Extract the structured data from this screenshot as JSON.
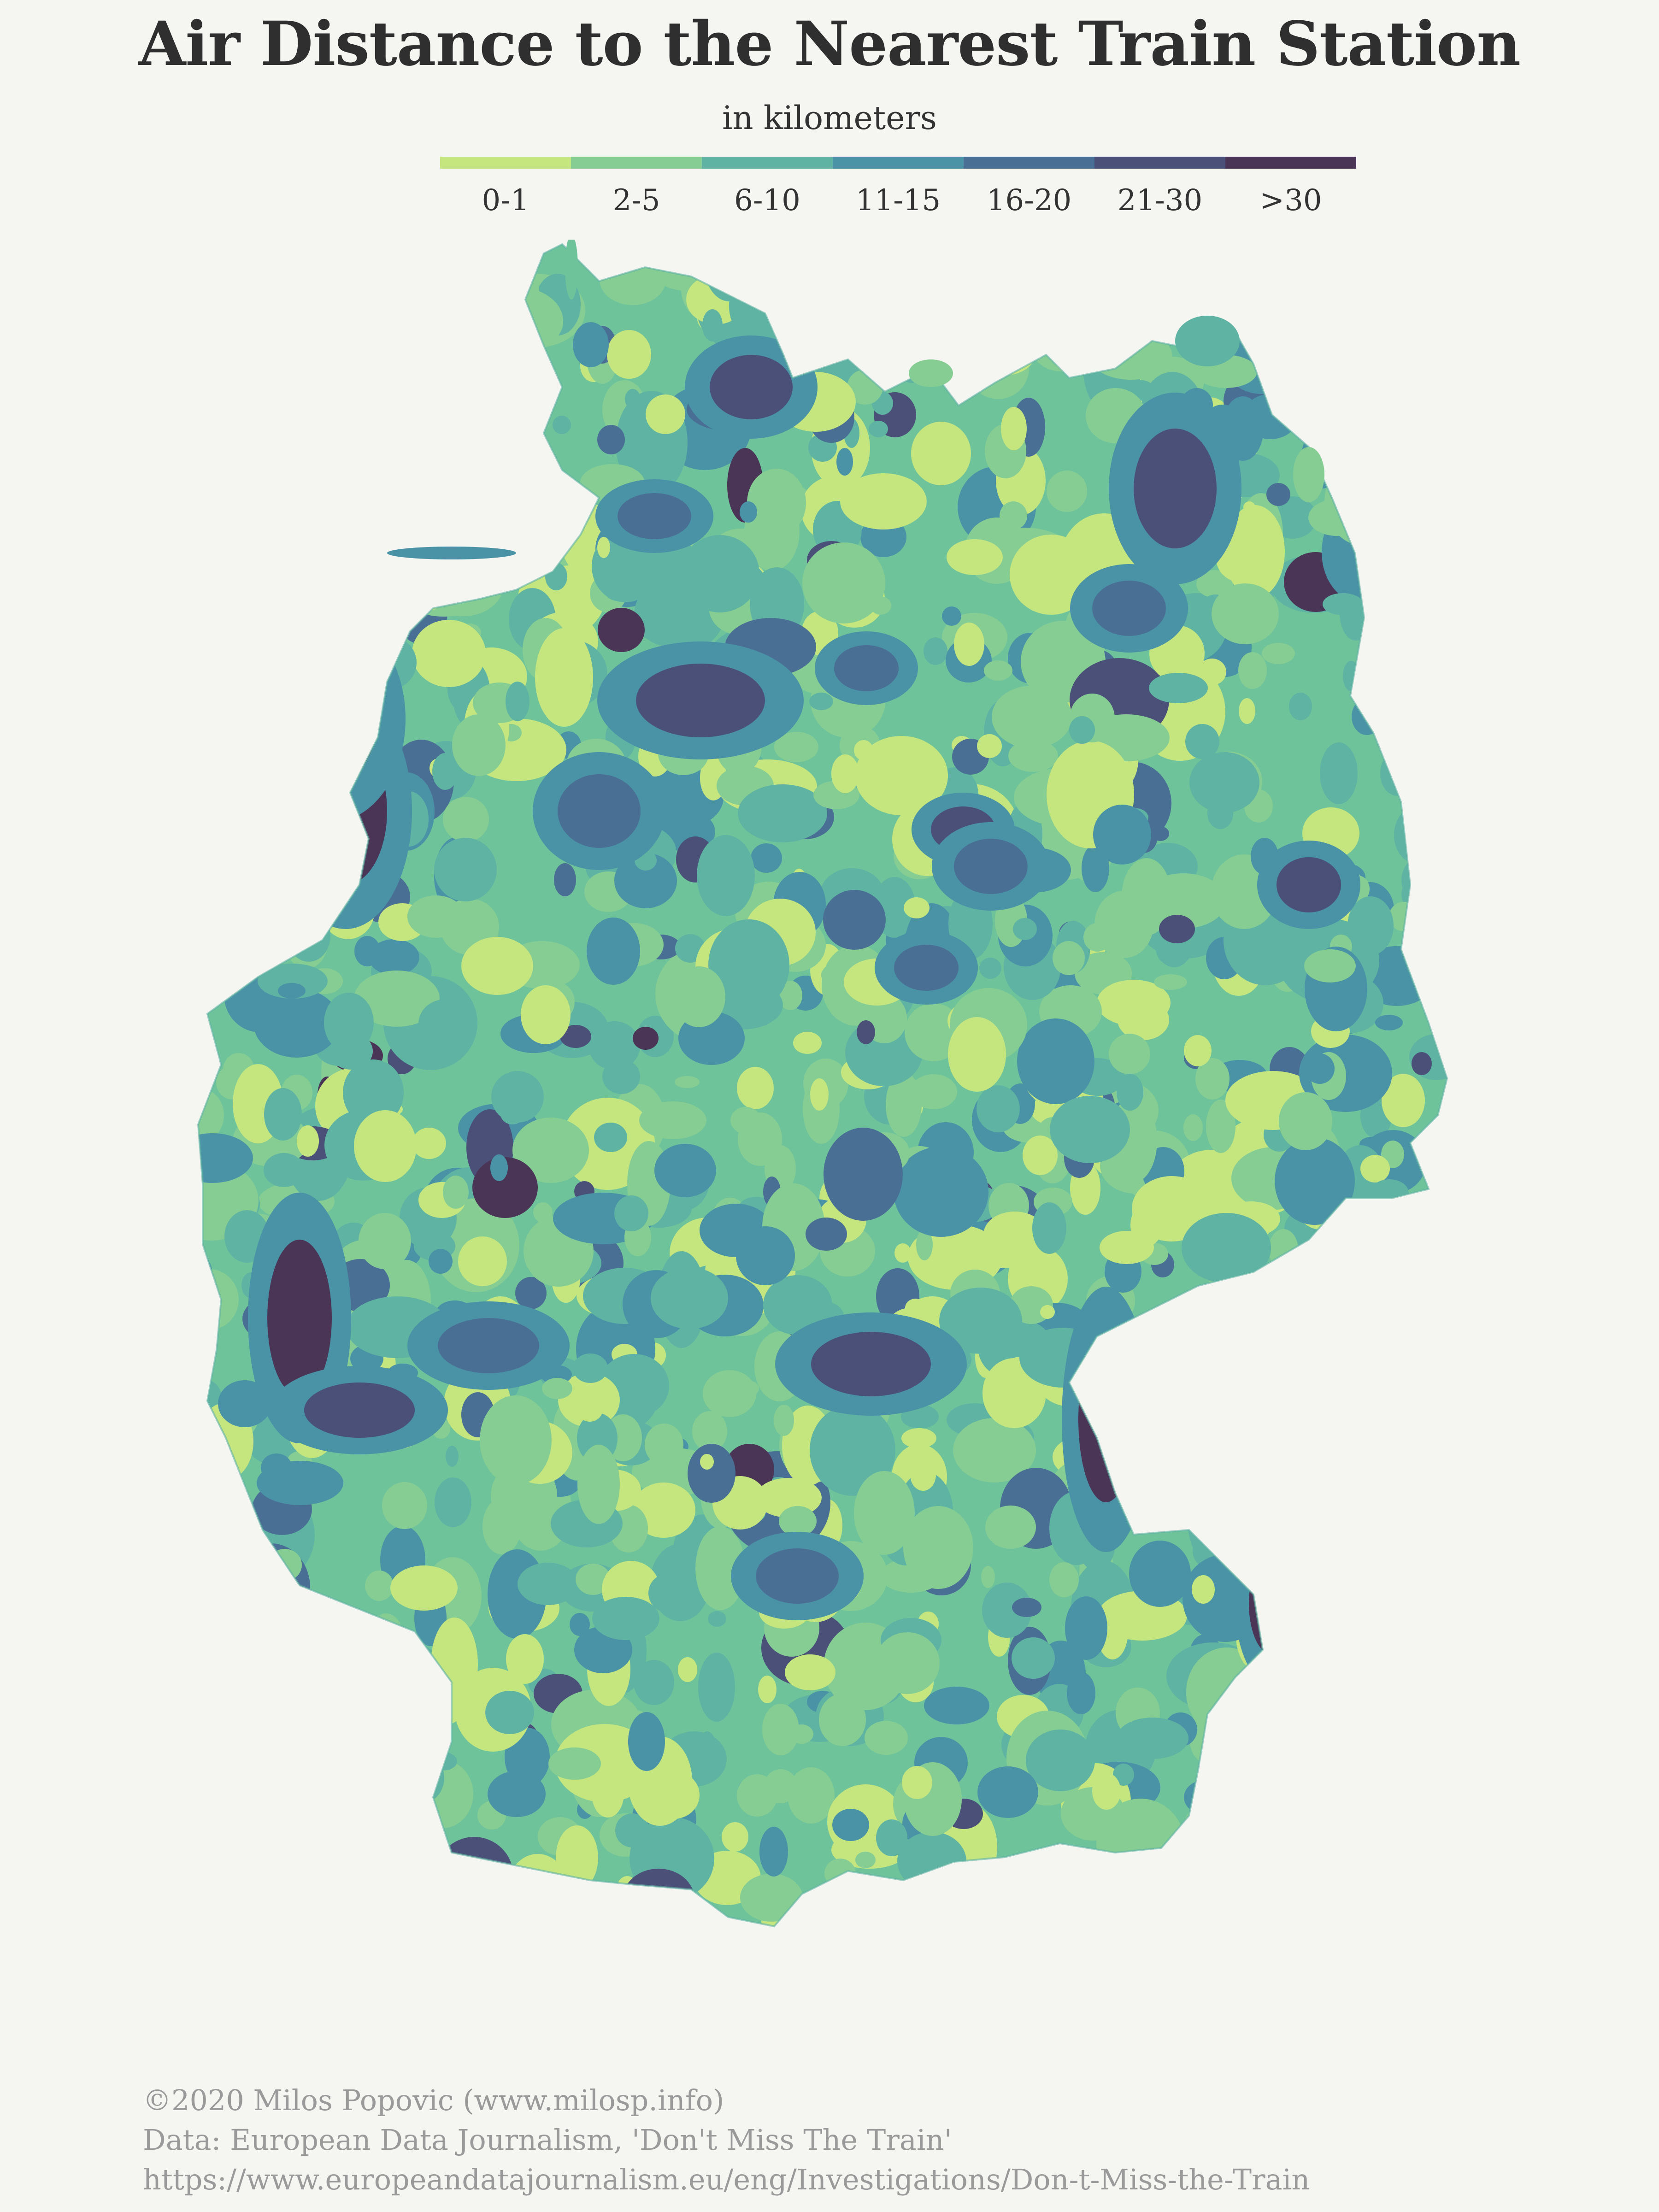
{
  "title": "Air Distance to the Nearest Train Station",
  "subtitle": "in kilometers",
  "legend": {
    "items": [
      {
        "label": "0-1",
        "color": "#c5e67f"
      },
      {
        "label": "2-5",
        "color": "#86cd93"
      },
      {
        "label": "6-10",
        "color": "#5fb3a3"
      },
      {
        "label": "11-15",
        "color": "#4a93a6"
      },
      {
        "label": "16-20",
        "color": "#4a6f94"
      },
      {
        "label": "21-30",
        "color": "#4b5079"
      },
      {
        "label": ">30",
        "color": "#4a3556"
      }
    ]
  },
  "map": {
    "region": "Germany",
    "hotspots": [
      {
        "class": ">30",
        "note": "western border near the Netherlands"
      },
      {
        "class": ">30",
        "note": "Eifel region, western border"
      },
      {
        "class": ">30",
        "note": "Bavarian Forest, eastern border"
      },
      {
        "class": "21-30",
        "note": "northern Lower Saxony"
      },
      {
        "class": "21-30",
        "note": "Mecklenburg"
      },
      {
        "class": "21-30",
        "note": "Upper Palatinate border"
      }
    ]
  },
  "credits": {
    "line1": "©2020 Milos Popovic (www.milosp.info)",
    "line2": " Data: European Data Journalism, 'Don't Miss The Train'",
    "line3": "https://www.europeandatajournalism.eu/eng/Investigations/Don-t-Miss-the-Train"
  },
  "colors": {
    "background": "#f5f5f1",
    "title": "#2f2f2f",
    "credits": "#9a9a9a"
  }
}
